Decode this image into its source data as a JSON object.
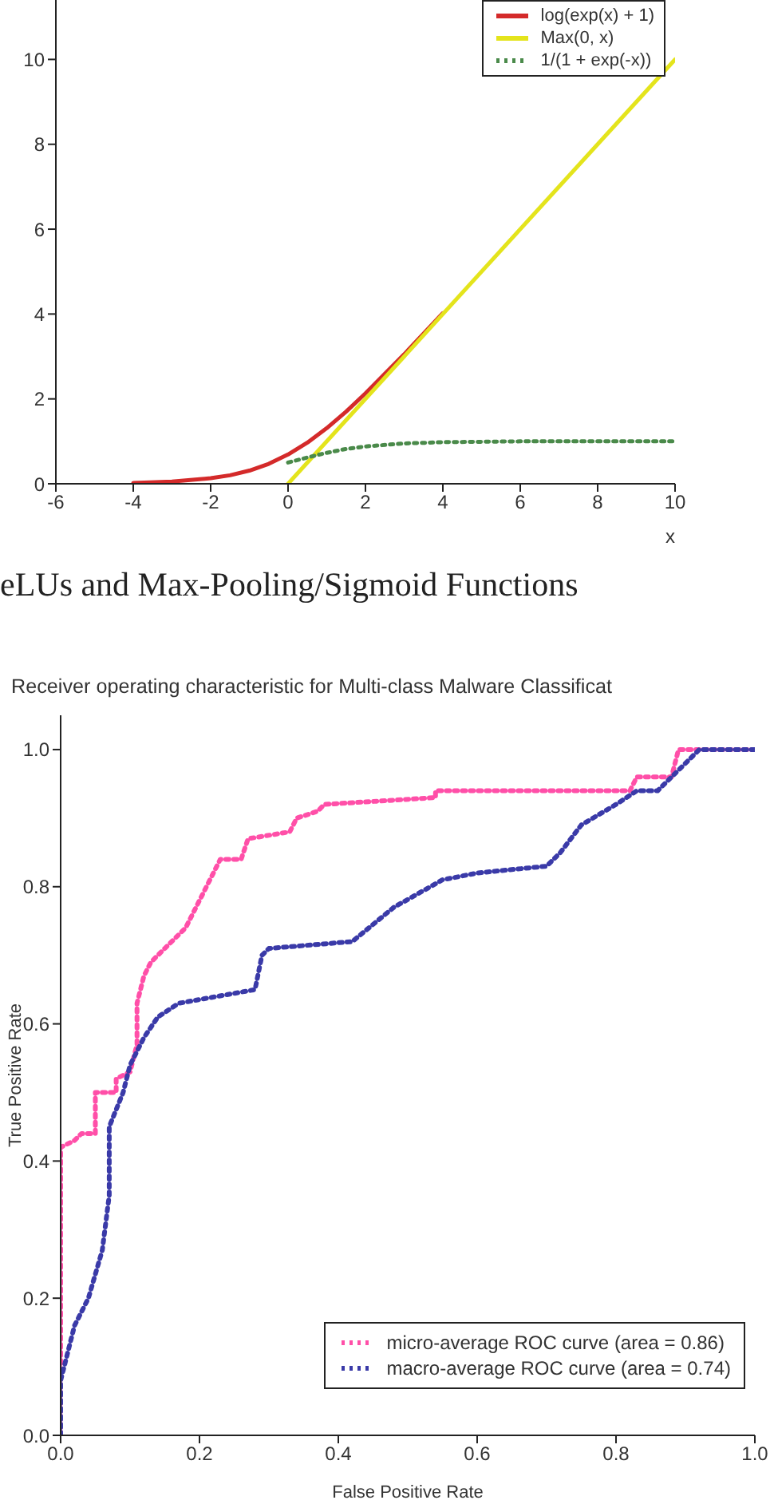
{
  "chart_data": [
    {
      "type": "line",
      "xlabel": "x",
      "xlim": [
        -6,
        10
      ],
      "ylim": [
        0,
        11.4
      ],
      "xticks": [
        -6,
        -4,
        -2,
        0,
        2,
        4,
        6,
        8,
        10
      ],
      "yticks": [
        0,
        2,
        4,
        6,
        8,
        10
      ],
      "grid": false,
      "legend": "top right",
      "marker": "none",
      "annotations": [
        "eLUs and Max-Pooling/Sigmoid Functions"
      ],
      "series": [
        {
          "name": "log(exp(x) + 1)",
          "color": "#d42a2a",
          "line_style": "solid",
          "x": [
            -4,
            -3,
            -2,
            -1.5,
            -1,
            -0.5,
            0,
            0.5,
            1,
            1.5,
            2,
            3,
            4
          ],
          "values": [
            0.02,
            0.05,
            0.13,
            0.2,
            0.31,
            0.47,
            0.69,
            0.97,
            1.31,
            1.7,
            2.13,
            3.05,
            4.02
          ]
        },
        {
          "name": "Max(0, x)",
          "color": "#e4e41c",
          "line_style": "solid",
          "x": [
            0,
            10
          ],
          "values": [
            0,
            10
          ]
        },
        {
          "name": "1/(1 + exp(-x))",
          "color": "#4a8a4a",
          "line_style": "dotted",
          "x": [
            0,
            0.5,
            1,
            1.5,
            2,
            3,
            4,
            6,
            8,
            10
          ],
          "values": [
            0.5,
            0.62,
            0.73,
            0.82,
            0.88,
            0.95,
            0.98,
            1.0,
            1.0,
            1.0
          ]
        }
      ]
    },
    {
      "type": "line",
      "title": "Receiver operating characteristic for Multi-class Malware Classificat",
      "xlabel": "False Positive Rate",
      "ylabel": "True Positive Rate",
      "xlim": [
        0,
        1
      ],
      "ylim": [
        0,
        1.05
      ],
      "xticks": [
        {
          "value": 0,
          "label": "0.0"
        },
        0.2,
        0.4,
        0.6,
        0.8,
        {
          "value": 1,
          "label": "1.0"
        }
      ],
      "yticks": [
        {
          "value": 0,
          "label": "0.0"
        },
        0.2,
        0.4,
        0.6,
        0.8,
        {
          "value": 1,
          "label": "1.0"
        }
      ],
      "grid": false,
      "legend": "bottom right",
      "marker": "none",
      "series": [
        {
          "name": "micro-average ROC curve (area = 0.86)",
          "color": "#ff4fa8",
          "line_style": "dotted",
          "x": [
            0,
            0,
            0.02,
            0.03,
            0.05,
            0.05,
            0.08,
            0.08,
            0.1,
            0.11,
            0.11,
            0.12,
            0.13,
            0.15,
            0.18,
            0.2,
            0.22,
            0.23,
            0.26,
            0.27,
            0.33,
            0.34,
            0.37,
            0.38,
            0.54,
            0.54,
            0.82,
            0.83,
            0.88,
            0.89,
            1.0
          ],
          "values": [
            0,
            0.42,
            0.43,
            0.44,
            0.44,
            0.5,
            0.5,
            0.52,
            0.53,
            0.57,
            0.63,
            0.67,
            0.69,
            0.71,
            0.74,
            0.78,
            0.82,
            0.84,
            0.84,
            0.87,
            0.88,
            0.9,
            0.91,
            0.92,
            0.93,
            0.94,
            0.94,
            0.96,
            0.96,
            1.0,
            1.0
          ]
        },
        {
          "name": "macro-average ROC curve (area = 0.74)",
          "color": "#3a3aa8",
          "line_style": "dotted",
          "x": [
            0,
            0,
            0.01,
            0.02,
            0.04,
            0.06,
            0.07,
            0.07,
            0.09,
            0.1,
            0.12,
            0.14,
            0.17,
            0.28,
            0.29,
            0.3,
            0.42,
            0.48,
            0.55,
            0.6,
            0.7,
            0.72,
            0.75,
            0.8,
            0.83,
            0.86,
            0.9,
            0.92,
            1.0
          ],
          "values": [
            0,
            0.08,
            0.12,
            0.16,
            0.2,
            0.27,
            0.35,
            0.45,
            0.5,
            0.54,
            0.58,
            0.61,
            0.63,
            0.65,
            0.7,
            0.71,
            0.72,
            0.77,
            0.81,
            0.82,
            0.83,
            0.85,
            0.89,
            0.92,
            0.94,
            0.94,
            0.98,
            1.0,
            1.0
          ]
        }
      ]
    }
  ]
}
